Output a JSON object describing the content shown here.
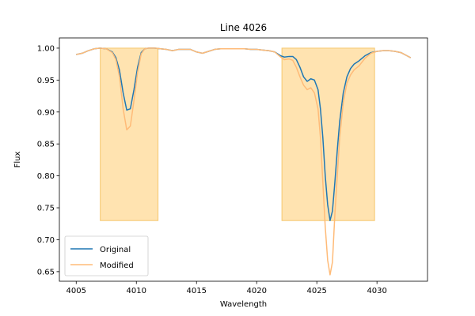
{
  "chart_data": {
    "type": "line",
    "title": "Line 4026",
    "xlabel": "Wavelength",
    "ylabel": "Flux",
    "xlim": [
      4003.6,
      4034.2
    ],
    "ylim": [
      0.635,
      1.016
    ],
    "xticks": [
      4005,
      4010,
      4015,
      4020,
      4025,
      4030
    ],
    "yticks": [
      0.65,
      0.7,
      0.75,
      0.8,
      0.85,
      0.9,
      0.95,
      1.0
    ],
    "ytick_labels": [
      "0.65",
      "0.70",
      "0.75",
      "0.80",
      "0.85",
      "0.90",
      "0.95",
      "1.00"
    ],
    "grid": false,
    "legend_position": "lower-left",
    "shaded_regions": [
      {
        "x0": 4007.0,
        "x1": 4011.8,
        "y0": 0.73,
        "y1": 1.0
      },
      {
        "x0": 4022.1,
        "x1": 4029.8,
        "y0": 0.73,
        "y1": 1.0
      }
    ],
    "shade_color": "#ffe3b0",
    "shade_edge": "#f5c76e",
    "series": [
      {
        "name": "Original",
        "color": "#1f77b4",
        "x": [
          4005.0,
          4005.5,
          4006.0,
          4006.5,
          4007.0,
          4007.5,
          4008.0,
          4008.3,
          4008.6,
          4008.9,
          4009.2,
          4009.5,
          4009.8,
          4010.1,
          4010.4,
          4010.7,
          4011.0,
          4011.5,
          4012.0,
          4012.5,
          4013.0,
          4013.5,
          4014.0,
          4014.5,
          4015.0,
          4015.5,
          4016.0,
          4016.5,
          4017.0,
          4017.5,
          4018.0,
          4018.5,
          4019.0,
          4019.5,
          4020.0,
          4020.5,
          4021.0,
          4021.5,
          4022.0,
          4022.3,
          4022.7,
          4023.0,
          4023.3,
          4023.6,
          4023.9,
          4024.2,
          4024.5,
          4024.8,
          4025.1,
          4025.3,
          4025.5,
          4025.7,
          4025.9,
          4026.1,
          4026.3,
          4026.5,
          4026.7,
          4026.9,
          4027.2,
          4027.5,
          4027.8,
          4028.1,
          4028.5,
          4029.0,
          4029.5,
          4030.0,
          4030.5,
          4031.0,
          4031.5,
          4032.0,
          4032.5,
          4032.8
        ],
        "y": [
          0.99,
          0.992,
          0.996,
          0.999,
          1.0,
          0.999,
          0.994,
          0.985,
          0.965,
          0.93,
          0.903,
          0.905,
          0.935,
          0.97,
          0.993,
          0.999,
          1.0,
          1.0,
          0.999,
          0.998,
          0.996,
          0.998,
          0.998,
          0.998,
          0.994,
          0.992,
          0.995,
          0.998,
          0.999,
          0.999,
          0.999,
          0.999,
          0.999,
          0.998,
          0.998,
          0.997,
          0.996,
          0.994,
          0.988,
          0.986,
          0.987,
          0.987,
          0.982,
          0.97,
          0.955,
          0.948,
          0.952,
          0.95,
          0.935,
          0.905,
          0.86,
          0.8,
          0.755,
          0.73,
          0.745,
          0.79,
          0.84,
          0.885,
          0.93,
          0.955,
          0.968,
          0.975,
          0.98,
          0.988,
          0.993,
          0.995,
          0.996,
          0.996,
          0.995,
          0.993,
          0.988,
          0.985
        ]
      },
      {
        "name": "Modified",
        "color": "#ffbb78",
        "x": [
          4005.0,
          4005.5,
          4006.0,
          4006.5,
          4007.0,
          4007.5,
          4008.0,
          4008.3,
          4008.6,
          4008.9,
          4009.2,
          4009.5,
          4009.8,
          4010.1,
          4010.4,
          4010.7,
          4011.0,
          4011.5,
          4012.0,
          4012.5,
          4013.0,
          4013.5,
          4014.0,
          4014.5,
          4015.0,
          4015.5,
          4016.0,
          4016.5,
          4017.0,
          4017.5,
          4018.0,
          4018.5,
          4019.0,
          4019.5,
          4020.0,
          4020.5,
          4021.0,
          4021.5,
          4022.0,
          4022.3,
          4022.7,
          4023.0,
          4023.3,
          4023.6,
          4023.9,
          4024.2,
          4024.5,
          4024.8,
          4025.1,
          4025.3,
          4025.5,
          4025.7,
          4025.9,
          4026.1,
          4026.3,
          4026.5,
          4026.7,
          4026.9,
          4027.2,
          4027.5,
          4027.8,
          4028.1,
          4028.5,
          4029.0,
          4029.5,
          4030.0,
          4030.5,
          4031.0,
          4031.5,
          4032.0,
          4032.5,
          4032.8
        ],
        "y": [
          0.99,
          0.992,
          0.996,
          0.999,
          1.0,
          0.999,
          0.993,
          0.982,
          0.955,
          0.905,
          0.872,
          0.878,
          0.918,
          0.962,
          0.991,
          0.999,
          1.0,
          1.0,
          0.999,
          0.998,
          0.996,
          0.998,
          0.998,
          0.998,
          0.994,
          0.992,
          0.995,
          0.998,
          0.999,
          0.999,
          0.999,
          0.999,
          0.999,
          0.998,
          0.998,
          0.997,
          0.996,
          0.994,
          0.986,
          0.982,
          0.983,
          0.981,
          0.97,
          0.955,
          0.942,
          0.935,
          0.938,
          0.93,
          0.905,
          0.86,
          0.79,
          0.72,
          0.668,
          0.645,
          0.665,
          0.74,
          0.8,
          0.86,
          0.915,
          0.945,
          0.958,
          0.966,
          0.972,
          0.984,
          0.992,
          0.995,
          0.996,
          0.996,
          0.995,
          0.993,
          0.988,
          0.985
        ]
      }
    ]
  }
}
